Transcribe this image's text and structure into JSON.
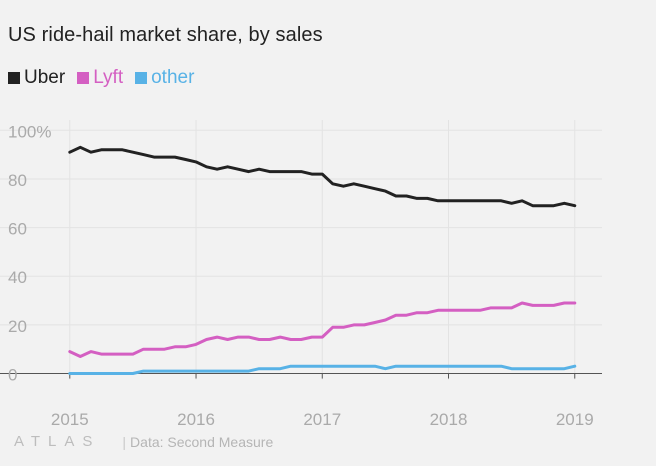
{
  "chart_data": {
    "type": "line",
    "title": "US ride-hail market share, by sales",
    "xlabel": "",
    "ylabel": "",
    "ylim": [
      -8,
      103
    ],
    "xlim": [
      2014.97,
      2019.2
    ],
    "y_ticks": [
      0,
      20,
      40,
      60,
      80,
      100
    ],
    "y_tick_labels": [
      "0",
      "20",
      "40",
      "60",
      "80",
      "100%"
    ],
    "x_ticks": [
      2015,
      2016,
      2017,
      2018,
      2019
    ],
    "x_tick_labels": [
      "2015",
      "2016",
      "2017",
      "2018",
      "2019"
    ],
    "grid": true,
    "legend_position": "top-left",
    "x": [
      2015.0,
      2015.083,
      2015.167,
      2015.25,
      2015.333,
      2015.417,
      2015.5,
      2015.583,
      2015.667,
      2015.75,
      2015.833,
      2015.917,
      2016.0,
      2016.083,
      2016.167,
      2016.25,
      2016.333,
      2016.417,
      2016.5,
      2016.583,
      2016.667,
      2016.75,
      2016.833,
      2016.917,
      2017.0,
      2017.083,
      2017.167,
      2017.25,
      2017.333,
      2017.417,
      2017.5,
      2017.583,
      2017.667,
      2017.75,
      2017.833,
      2017.917,
      2018.0,
      2018.083,
      2018.167,
      2018.25,
      2018.333,
      2018.417,
      2018.5,
      2018.583,
      2018.667,
      2018.75,
      2018.833,
      2018.917,
      2019.0
    ],
    "series": [
      {
        "name": "Uber",
        "color": "#222222",
        "values": [
          91,
          93,
          91,
          92,
          92,
          92,
          91,
          90,
          89,
          89,
          89,
          88,
          87,
          85,
          84,
          85,
          84,
          83,
          84,
          83,
          83,
          83,
          83,
          82,
          82,
          78,
          77,
          78,
          77,
          76,
          75,
          73,
          73,
          72,
          72,
          71,
          71,
          71,
          71,
          71,
          71,
          71,
          70,
          71,
          69,
          69,
          69,
          70,
          69
        ]
      },
      {
        "name": "Lyft",
        "color": "#d45fc2",
        "values": [
          9,
          7,
          9,
          8,
          8,
          8,
          8,
          10,
          10,
          10,
          11,
          11,
          12,
          14,
          15,
          14,
          15,
          15,
          14,
          14,
          15,
          14,
          14,
          15,
          15,
          19,
          19,
          20,
          20,
          21,
          22,
          24,
          24,
          25,
          25,
          26,
          26,
          26,
          26,
          26,
          27,
          27,
          27,
          29,
          28,
          28,
          28,
          29,
          29
        ]
      },
      {
        "name": "other",
        "color": "#58b2e6",
        "values": [
          0,
          0,
          0,
          0,
          0,
          0,
          0,
          1,
          1,
          1,
          1,
          1,
          1,
          1,
          1,
          1,
          1,
          1,
          2,
          2,
          2,
          3,
          3,
          3,
          3,
          3,
          3,
          3,
          3,
          3,
          2,
          3,
          3,
          3,
          3,
          3,
          3,
          3,
          3,
          3,
          3,
          3,
          2,
          2,
          2,
          2,
          2,
          2,
          3
        ]
      }
    ]
  },
  "legend": {
    "uber": "Uber",
    "lyft": "Lyft",
    "other": "other"
  },
  "footer": {
    "brand": "ATLAS",
    "separator": "|",
    "source": "Data: Second Measure"
  },
  "colors": {
    "background": "#f2f2f2",
    "uber": "#222222",
    "lyft": "#d45fc2",
    "other": "#58b2e6",
    "grid": "#e3e3e3",
    "axis": "#555555",
    "tick_text": "#aaaaaa"
  }
}
